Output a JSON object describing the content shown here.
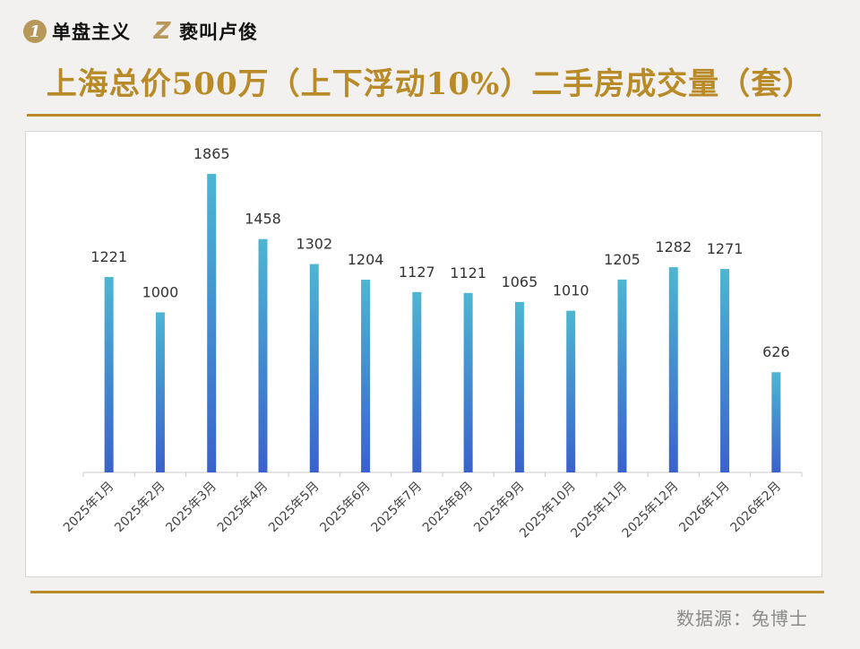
{
  "header": {
    "logo_badge": "1",
    "logo_text_1": "单盘主义",
    "logo_z": "Z",
    "logo_text_2": "亵叫卢俊"
  },
  "source_text": "数据源：兔博士",
  "colors": {
    "accent": "#b88a28",
    "bar_top": "#4db6d2",
    "bar_bottom": "#3a62cc"
  },
  "chart_data": {
    "type": "bar",
    "title": "上海总价500万（上下浮动10%）二手房成交量（套）",
    "xlabel": "",
    "ylabel": "",
    "categories": [
      "2025年1月",
      "2025年2月",
      "2025年3月",
      "2025年4月",
      "2025年5月",
      "2025年6月",
      "2025年7月",
      "2025年8月",
      "2025年9月",
      "2025年10月",
      "2025年11月",
      "2025年12月",
      "2026年1月",
      "2026年2月"
    ],
    "values": [
      1221,
      1000,
      1865,
      1458,
      1302,
      1204,
      1127,
      1121,
      1065,
      1010,
      1205,
      1282,
      1271,
      626
    ],
    "ylim": [
      0,
      2000
    ],
    "grid": false,
    "legend": "none",
    "data_labels": true
  }
}
